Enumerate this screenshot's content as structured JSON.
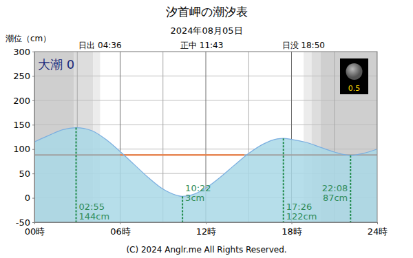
{
  "chart_data": {
    "type": "area",
    "title": "汐首岬の潮汐表",
    "subtitle": "2024年08月05日",
    "y_label": "潮位（cm）",
    "badge": "大潮 0",
    "moon_age": 0.5,
    "copyright": "(C) 2024 Anglr.me All Rights Reserved.",
    "x": [
      0,
      1,
      2,
      2.917,
      4,
      5,
      6,
      7,
      8,
      9,
      10,
      10.367,
      11,
      12,
      13,
      14,
      15,
      16,
      17,
      17.433,
      18,
      19,
      20,
      21,
      22.133,
      23,
      24
    ],
    "values": [
      115,
      128,
      140,
      144,
      138,
      120,
      95,
      68,
      41,
      18,
      5,
      3,
      6,
      20,
      42,
      67,
      91,
      110,
      121,
      122,
      120,
      114,
      104,
      94,
      87,
      91,
      100
    ],
    "color": "#7aaee0",
    "xlim": [
      0,
      24
    ],
    "xticks": [
      {
        "value": 0,
        "label": "00時"
      },
      {
        "value": 6,
        "label": "06時"
      },
      {
        "value": 12,
        "label": "12時"
      },
      {
        "value": 18,
        "label": "18時"
      },
      {
        "value": 24,
        "label": "24時"
      }
    ],
    "x_minor_grid": [
      3,
      9,
      15,
      21
    ],
    "ylim": [
      -50,
      300
    ],
    "yticks": [
      -50,
      0,
      50,
      100,
      150,
      200,
      250,
      300
    ],
    "grid": true,
    "sun": [
      {
        "label": "日出 04:36",
        "x": 4.6
      },
      {
        "label": "正中 11:43",
        "x": 11.72
      },
      {
        "label": "日没 18:50",
        "x": 18.83
      }
    ],
    "night_bands": [
      {
        "x": [
          0,
          2.75
        ],
        "color": "#cfcfcf"
      },
      {
        "x": [
          2.75,
          4.1
        ],
        "color": "#dddddd"
      },
      {
        "x": [
          4.1,
          4.6
        ],
        "color": "#ececec"
      },
      {
        "x": [
          18.85,
          19.4
        ],
        "color": "#ececec"
      },
      {
        "x": [
          19.4,
          20.05
        ],
        "color": "#dddddd"
      },
      {
        "x": [
          20.05,
          24
        ],
        "color": "#cfcfcf"
      }
    ],
    "mean_level": 88,
    "reference_line": {
      "y": 88,
      "x": [
        6,
        14.7
      ],
      "color": "#f47c3c"
    },
    "annotations": [
      {
        "x": 2.917,
        "y": 144,
        "time": "02:55",
        "level": "144cm"
      },
      {
        "x": 10.367,
        "y": 3,
        "time": "10:22",
        "level": "3cm"
      },
      {
        "x": 17.433,
        "y": 122,
        "time": "17:26",
        "level": "122cm"
      },
      {
        "x": 22.133,
        "y": 87,
        "time": "22:08",
        "level": "87cm"
      }
    ]
  }
}
